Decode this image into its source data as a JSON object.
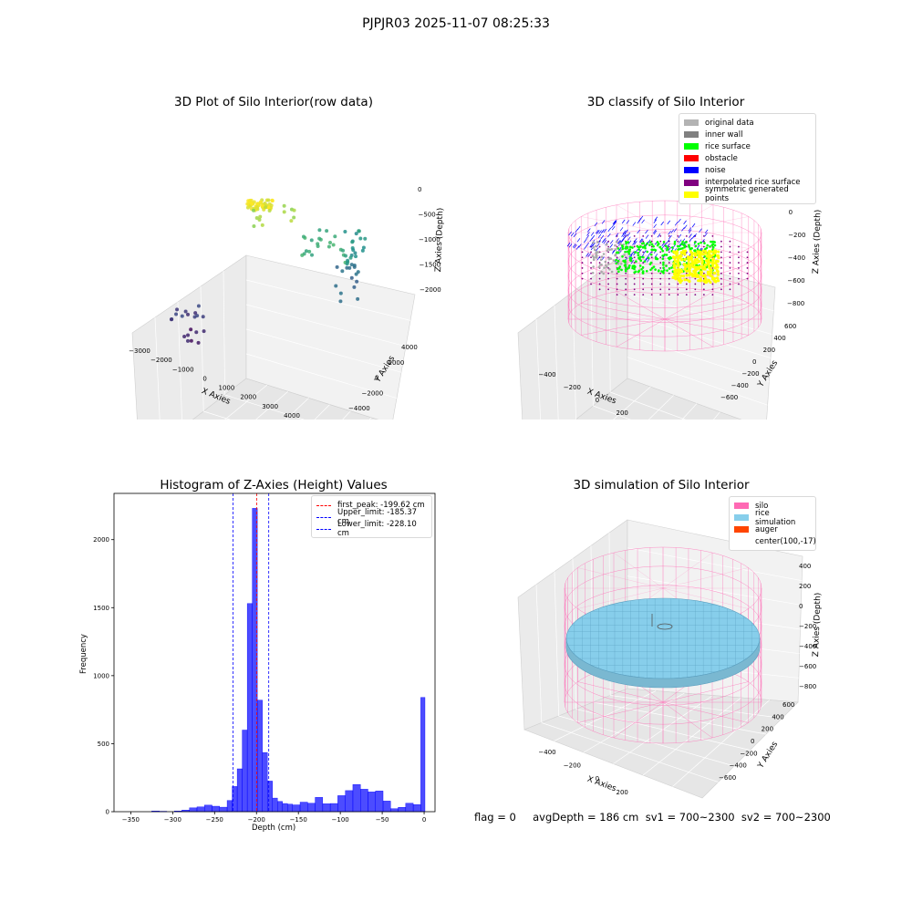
{
  "figure": {
    "suptitle": "PJPJR03 2025-11-07 08:25:33",
    "footer": "flag = 0     avgDepth = 186 cm  sv1 = 700~2300  sv2 = 700~2300"
  },
  "panels": {
    "raw": {
      "title": "3D Plot of Silo Interior(row data)",
      "xlabel": "X Axies",
      "ylabel": "Y Axies",
      "zlabel": "Z Axies (Depth)",
      "xticks": [
        "−3000",
        "−2000",
        "−1000",
        "0",
        "1000",
        "2000",
        "3000",
        "4000"
      ],
      "yticks": [
        "4000",
        "2000",
        "0",
        "−2000",
        "−4000"
      ],
      "zticks": [
        "0",
        "−500",
        "−1000",
        "−1500",
        "−2000"
      ]
    },
    "classify": {
      "title": "3D classify of Silo Interior",
      "xlabel": "X Axies",
      "ylabel": "Y Axies",
      "zlabel": "Z Axies (Depth)",
      "xticks": [
        "−400",
        "−200",
        "0",
        "200",
        "400",
        "600"
      ],
      "yticks": [
        "600",
        "400",
        "200",
        "0",
        "−200",
        "−400",
        "−600"
      ],
      "zticks": [
        "200",
        "0",
        "−200",
        "−400",
        "−600",
        "−800"
      ],
      "legend": [
        {
          "label": "original data",
          "color": "#b3b3b3"
        },
        {
          "label": "inner wall",
          "color": "#808080"
        },
        {
          "label": "rice surface",
          "color": "#00ff00"
        },
        {
          "label": "obstacle",
          "color": "#ff0000"
        },
        {
          "label": "noise",
          "color": "#0000ff"
        },
        {
          "label": "interpolated rice surface",
          "color": "#800080"
        },
        {
          "label": "symmetric generated points",
          "color": "#ffff00"
        }
      ]
    },
    "histogram": {
      "title": "Histogram of Z-Axies (Height) Values",
      "xlabel": "Depth (cm)",
      "ylabel": "Frequency",
      "legend": [
        {
          "label": "first_peak: -199.62 cm",
          "color": "#ff0000"
        },
        {
          "label": "Upper_limit: -185.37 cm",
          "color": "#0000ff"
        },
        {
          "label": "Lower_limit: -228.10 cm",
          "color": "#0000ff"
        }
      ]
    },
    "simulation": {
      "title": "3D simulation of Silo Interior",
      "xlabel": "X Axies",
      "ylabel": "Y Axies",
      "zlabel": "Z Axies (Depth)",
      "xticks": [
        "−400",
        "−200",
        "0",
        "200",
        "400",
        "600"
      ],
      "yticks": [
        "600",
        "400",
        "200",
        "0",
        "−200",
        "−400",
        "−600"
      ],
      "zticks": [
        "400",
        "200",
        "0",
        "−200",
        "−400",
        "−600",
        "−800"
      ],
      "legend": [
        {
          "label": "silo",
          "color": "#ff69b4"
        },
        {
          "label": "rice simulation",
          "color": "#87ceeb"
        },
        {
          "label": "auger",
          "color": "#ff4500"
        },
        {
          "label": "center(100,-17)",
          "color": ""
        }
      ]
    }
  },
  "chart_data": [
    {
      "type": "histogram",
      "title": "Histogram of Z-Axies (Height) Values",
      "xlabel": "Depth (cm)",
      "ylabel": "Frequency",
      "xlim": [
        -370,
        13
      ],
      "ylim": [
        0,
        2340
      ],
      "xticks": [
        -350,
        -300,
        -250,
        -200,
        -150,
        -100,
        -50,
        0
      ],
      "yticks": [
        0,
        500,
        1000,
        1500,
        2000
      ],
      "bar_color": "#0000ff",
      "bins": [
        {
          "x0": -325,
          "x1": -316,
          "count": 5
        },
        {
          "x0": -316,
          "x1": -307,
          "count": 3
        },
        {
          "x0": -298,
          "x1": -289,
          "count": 5
        },
        {
          "x0": -289,
          "x1": -280,
          "count": 12
        },
        {
          "x0": -280,
          "x1": -271,
          "count": 28
        },
        {
          "x0": -271,
          "x1": -262,
          "count": 35
        },
        {
          "x0": -262,
          "x1": -253,
          "count": 48
        },
        {
          "x0": -253,
          "x1": -244,
          "count": 40
        },
        {
          "x0": -244,
          "x1": -235,
          "count": 33
        },
        {
          "x0": -235,
          "x1": -229,
          "count": 82
        },
        {
          "x0": -229,
          "x1": -223,
          "count": 185
        },
        {
          "x0": -223,
          "x1": -217,
          "count": 315
        },
        {
          "x0": -217,
          "x1": -211,
          "count": 600
        },
        {
          "x0": -211,
          "x1": -205,
          "count": 1530
        },
        {
          "x0": -205,
          "x1": -199,
          "count": 2230
        },
        {
          "x0": -199,
          "x1": -193,
          "count": 820
        },
        {
          "x0": -193,
          "x1": -187,
          "count": 435
        },
        {
          "x0": -187,
          "x1": -181,
          "count": 225
        },
        {
          "x0": -181,
          "x1": -175,
          "count": 100
        },
        {
          "x0": -175,
          "x1": -169,
          "count": 75
        },
        {
          "x0": -169,
          "x1": -163,
          "count": 60
        },
        {
          "x0": -163,
          "x1": -157,
          "count": 55
        },
        {
          "x0": -157,
          "x1": -148,
          "count": 50
        },
        {
          "x0": -148,
          "x1": -139,
          "count": 70
        },
        {
          "x0": -139,
          "x1": -130,
          "count": 62
        },
        {
          "x0": -130,
          "x1": -121,
          "count": 105
        },
        {
          "x0": -121,
          "x1": -112,
          "count": 58
        },
        {
          "x0": -112,
          "x1": -103,
          "count": 60
        },
        {
          "x0": -103,
          "x1": -94,
          "count": 118
        },
        {
          "x0": -94,
          "x1": -85,
          "count": 155
        },
        {
          "x0": -85,
          "x1": -76,
          "count": 200
        },
        {
          "x0": -76,
          "x1": -67,
          "count": 165
        },
        {
          "x0": -67,
          "x1": -58,
          "count": 145
        },
        {
          "x0": -58,
          "x1": -49,
          "count": 152
        },
        {
          "x0": -49,
          "x1": -40,
          "count": 78
        },
        {
          "x0": -40,
          "x1": -31,
          "count": 22
        },
        {
          "x0": -31,
          "x1": -22,
          "count": 32
        },
        {
          "x0": -22,
          "x1": -13,
          "count": 62
        },
        {
          "x0": -13,
          "x1": -4,
          "count": 52
        },
        {
          "x0": -4,
          "x1": 1,
          "count": 840
        }
      ],
      "vlines": [
        {
          "label": "first_peak: -199.62 cm",
          "x": -199.62,
          "color": "#ff0000"
        },
        {
          "label": "Upper_limit: -185.37 cm",
          "x": -185.37,
          "color": "#0000ff"
        },
        {
          "label": "Lower_limit: -228.10 cm",
          "x": -228.1,
          "color": "#0000ff"
        }
      ],
      "legend_position": "upper right"
    },
    {
      "type": "scatter",
      "title": "3D Plot of Silo Interior(row data)",
      "xlabel": "X Axies",
      "ylabel": "Y Axies",
      "zlabel": "Z Axies (Depth)",
      "xlim": [
        -3000,
        4500
      ],
      "ylim": [
        -4500,
        4500
      ],
      "zlim": [
        -2200,
        100
      ],
      "colormap": "viridis (by depth)"
    },
    {
      "type": "scatter",
      "title": "3D classify of Silo Interior",
      "xlim": [
        -500,
        700
      ],
      "ylim": [
        -700,
        700
      ],
      "zlim": [
        -900,
        300
      ]
    },
    {
      "type": "surface",
      "title": "3D simulation of Silo Interior",
      "xlim": [
        -500,
        700
      ],
      "ylim": [
        -700,
        700
      ],
      "zlim": [
        -900,
        450
      ]
    }
  ]
}
